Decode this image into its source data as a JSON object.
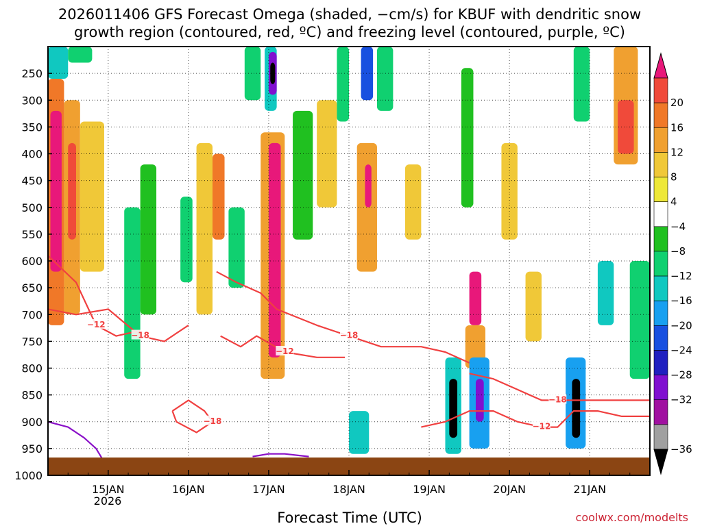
{
  "chart_data": {
    "type": "heatmap",
    "title_line1": "2026011406 GFS Forecast Omega (shaded, −cm/s) for KBUF with dendritic snow",
    "title_line2": "growth region (contoured, red, ºC) and freezing level (contoured, purple, ºC)",
    "xlabel": "Forecast Time (UTC)",
    "ylabel": "",
    "credit": "coolwx.com/modelts",
    "x_ticks": [
      {
        "label": "15JAN",
        "day": 15
      },
      {
        "label": "16JAN",
        "day": 16
      },
      {
        "label": "17JAN",
        "day": 17
      },
      {
        "label": "18JAN",
        "day": 18
      },
      {
        "label": "19JAN",
        "day": 19
      },
      {
        "label": "20JAN",
        "day": 20
      },
      {
        "label": "21JAN",
        "day": 21
      }
    ],
    "x_year_label": "2026",
    "xlim": [
      14.25,
      21.75
    ],
    "y_ticks": [
      250,
      300,
      350,
      400,
      450,
      500,
      550,
      600,
      650,
      700,
      750,
      800,
      850,
      900,
      950,
      1000
    ],
    "ylim": [
      200,
      1000
    ],
    "colorbar": {
      "labels": [
        "20",
        "16",
        "12",
        "8",
        "4",
        "−4",
        "−8",
        "−12",
        "−16",
        "−20",
        "−24",
        "−28",
        "−32",
        "−36"
      ],
      "colors": [
        "#e8187a",
        "#f04a3a",
        "#f07828",
        "#f0a030",
        "#f0c838",
        "#eee838",
        "#ffffff",
        "#20c020",
        "#10d070",
        "#10c8c0",
        "#18a0f0",
        "#1850e0",
        "#2020c0",
        "#8010d0",
        "#a010a0",
        "#a0a0a0",
        "#000000"
      ]
    },
    "omega_cells": [
      {
        "t0": 14.25,
        "t1": 14.45,
        "p0": 260,
        "p1": 720,
        "v": 14
      },
      {
        "t0": 14.28,
        "t1": 14.42,
        "p0": 320,
        "p1": 620,
        "v": 20
      },
      {
        "t0": 14.45,
        "t1": 14.65,
        "p0": 300,
        "p1": 700,
        "v": 10
      },
      {
        "t0": 14.5,
        "t1": 14.6,
        "p0": 380,
        "p1": 560,
        "v": 18
      },
      {
        "t0": 14.65,
        "t1": 14.95,
        "p0": 340,
        "p1": 620,
        "v": 6
      },
      {
        "t0": 14.25,
        "t1": 14.5,
        "p0": 200,
        "p1": 260,
        "v": -12
      },
      {
        "t0": 14.5,
        "t1": 14.8,
        "p0": 200,
        "p1": 230,
        "v": -8
      },
      {
        "t0": 15.2,
        "t1": 15.4,
        "p0": 500,
        "p1": 820,
        "v": -10
      },
      {
        "t0": 15.4,
        "t1": 15.6,
        "p0": 420,
        "p1": 700,
        "v": -6
      },
      {
        "t0": 15.9,
        "t1": 16.05,
        "p0": 480,
        "p1": 640,
        "v": -10
      },
      {
        "t0": 16.1,
        "t1": 16.3,
        "p0": 380,
        "p1": 700,
        "v": 6
      },
      {
        "t0": 16.3,
        "t1": 16.45,
        "p0": 400,
        "p1": 560,
        "v": 14
      },
      {
        "t0": 16.5,
        "t1": 16.7,
        "p0": 500,
        "p1": 650,
        "v": -8
      },
      {
        "t0": 16.7,
        "t1": 16.9,
        "p0": 200,
        "p1": 300,
        "v": -8
      },
      {
        "t0": 16.95,
        "t1": 17.1,
        "p0": 200,
        "p1": 320,
        "v": -12
      },
      {
        "t0": 17.0,
        "t1": 17.1,
        "p0": 210,
        "p1": 290,
        "v": -28
      },
      {
        "t0": 17.02,
        "t1": 17.08,
        "p0": 230,
        "p1": 270,
        "v": -34
      },
      {
        "t0": 16.9,
        "t1": 17.2,
        "p0": 360,
        "p1": 820,
        "v": 10
      },
      {
        "t0": 17.0,
        "t1": 17.15,
        "p0": 380,
        "p1": 780,
        "v": 20
      },
      {
        "t0": 17.3,
        "t1": 17.55,
        "p0": 320,
        "p1": 560,
        "v": -4
      },
      {
        "t0": 17.6,
        "t1": 17.85,
        "p0": 300,
        "p1": 500,
        "v": 6
      },
      {
        "t0": 17.85,
        "t1": 18.0,
        "p0": 200,
        "p1": 340,
        "v": -10
      },
      {
        "t0": 18.1,
        "t1": 18.35,
        "p0": 380,
        "p1": 620,
        "v": 10
      },
      {
        "t0": 18.2,
        "t1": 18.28,
        "p0": 420,
        "p1": 500,
        "v": 20
      },
      {
        "t0": 18.15,
        "t1": 18.3,
        "p0": 200,
        "p1": 300,
        "v": -20
      },
      {
        "t0": 18.35,
        "t1": 18.55,
        "p0": 200,
        "p1": 320,
        "v": -10
      },
      {
        "t0": 18.0,
        "t1": 18.25,
        "p0": 880,
        "p1": 960,
        "v": -14
      },
      {
        "t0": 18.7,
        "t1": 18.9,
        "p0": 420,
        "p1": 560,
        "v": 6
      },
      {
        "t0": 19.2,
        "t1": 19.4,
        "p0": 780,
        "p1": 960,
        "v": -14
      },
      {
        "t0": 19.25,
        "t1": 19.35,
        "p0": 820,
        "p1": 930,
        "v": -36
      },
      {
        "t0": 19.4,
        "t1": 19.55,
        "p0": 240,
        "p1": 500,
        "v": -6
      },
      {
        "t0": 19.5,
        "t1": 19.65,
        "p0": 620,
        "p1": 720,
        "v": 20
      },
      {
        "t0": 19.45,
        "t1": 19.7,
        "p0": 720,
        "p1": 800,
        "v": 8
      },
      {
        "t0": 19.5,
        "t1": 19.75,
        "p0": 780,
        "p1": 950,
        "v": -16
      },
      {
        "t0": 19.58,
        "t1": 19.68,
        "p0": 820,
        "p1": 900,
        "v": -28
      },
      {
        "t0": 19.9,
        "t1": 20.1,
        "p0": 380,
        "p1": 560,
        "v": 6
      },
      {
        "t0": 20.2,
        "t1": 20.4,
        "p0": 620,
        "p1": 750,
        "v": 6
      },
      {
        "t0": 20.7,
        "t1": 20.95,
        "p0": 780,
        "p1": 950,
        "v": -16
      },
      {
        "t0": 20.78,
        "t1": 20.88,
        "p0": 820,
        "p1": 930,
        "v": -36
      },
      {
        "t0": 20.8,
        "t1": 21.0,
        "p0": 200,
        "p1": 340,
        "v": -8
      },
      {
        "t0": 21.1,
        "t1": 21.3,
        "p0": 600,
        "p1": 720,
        "v": -12
      },
      {
        "t0": 21.3,
        "t1": 21.6,
        "p0": 200,
        "p1": 420,
        "v": 10
      },
      {
        "t0": 21.35,
        "t1": 21.55,
        "p0": 300,
        "p1": 400,
        "v": 16
      },
      {
        "t0": 21.5,
        "t1": 21.75,
        "p0": 600,
        "p1": 820,
        "v": -8
      }
    ],
    "dgz_contours": [
      {
        "label": "−12",
        "points": [
          [
            14.25,
            590
          ],
          [
            14.6,
            640
          ],
          [
            14.85,
            720
          ],
          [
            15.1,
            740
          ],
          [
            15.4,
            730
          ]
        ]
      },
      {
        "label": "−18",
        "points": [
          [
            14.25,
            690
          ],
          [
            14.6,
            700
          ],
          [
            15.0,
            690
          ],
          [
            15.4,
            740
          ],
          [
            15.7,
            750
          ],
          [
            16.0,
            720
          ]
        ]
      },
      {
        "label": "−12",
        "points": [
          [
            16.4,
            740
          ],
          [
            16.65,
            760
          ],
          [
            16.85,
            740
          ],
          [
            17.2,
            770
          ],
          [
            17.6,
            780
          ],
          [
            17.95,
            780
          ]
        ]
      },
      {
        "label": "−18",
        "points": [
          [
            16.35,
            620
          ],
          [
            16.6,
            640
          ],
          [
            16.9,
            660
          ],
          [
            17.1,
            690
          ],
          [
            17.6,
            720
          ],
          [
            18.0,
            740
          ],
          [
            18.4,
            760
          ],
          [
            18.9,
            760
          ],
          [
            19.2,
            770
          ],
          [
            19.5,
            790
          ]
        ]
      },
      {
        "label": "−18",
        "points": [
          [
            15.8,
            880
          ],
          [
            16.0,
            860
          ],
          [
            16.2,
            880
          ],
          [
            16.3,
            900
          ],
          [
            16.1,
            920
          ],
          [
            15.85,
            900
          ],
          [
            15.8,
            880
          ]
        ]
      },
      {
        "label": "−12",
        "points": [
          [
            18.9,
            910
          ],
          [
            19.2,
            900
          ],
          [
            19.5,
            880
          ],
          [
            19.8,
            880
          ],
          [
            20.1,
            900
          ],
          [
            20.4,
            910
          ],
          [
            20.6,
            910
          ],
          [
            20.8,
            880
          ],
          [
            21.1,
            880
          ],
          [
            21.4,
            890
          ],
          [
            21.75,
            890
          ]
        ]
      },
      {
        "label": "−18",
        "points": [
          [
            19.5,
            810
          ],
          [
            19.8,
            820
          ],
          [
            20.1,
            840
          ],
          [
            20.4,
            860
          ],
          [
            20.6,
            860
          ],
          [
            20.8,
            860
          ],
          [
            21.1,
            860
          ],
          [
            21.4,
            860
          ],
          [
            21.75,
            860
          ]
        ]
      }
    ],
    "freezing_contours": [
      {
        "label": "",
        "points": [
          [
            14.25,
            900
          ],
          [
            14.5,
            910
          ],
          [
            14.7,
            930
          ],
          [
            14.85,
            950
          ],
          [
            14.95,
            975
          ]
        ]
      },
      {
        "label": "",
        "points": [
          [
            16.8,
            965
          ],
          [
            17.0,
            960
          ],
          [
            17.2,
            960
          ],
          [
            17.5,
            965
          ]
        ]
      }
    ]
  }
}
